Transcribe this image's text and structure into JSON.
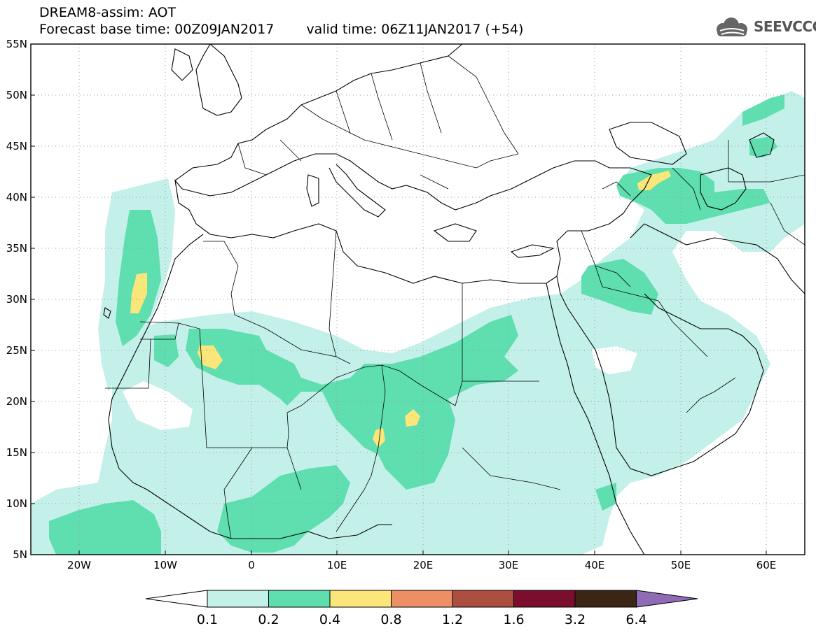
{
  "header": {
    "line1": "DREAM8-assim: AOT",
    "base_label": "Forecast base time: 00Z09JAN2017",
    "valid_label": "valid time: 06Z11JAN2017 (+54)"
  },
  "logo": {
    "text": "SEEVCCC",
    "icon": "cloud-icon"
  },
  "map": {
    "lon_range": [
      -25,
      65
    ],
    "lat_range": [
      5,
      55
    ],
    "lat_labels": [
      "55N",
      "50N",
      "45N",
      "40N",
      "35N",
      "30N",
      "25N",
      "20N",
      "15N",
      "10N",
      "5N"
    ],
    "lon_labels": [
      "20W",
      "10W",
      "0",
      "10E",
      "20E",
      "30E",
      "40E",
      "50E",
      "60E"
    ],
    "grid": "dotted"
  },
  "colorbar": {
    "labels": [
      "0.1",
      "0.2",
      "0.4",
      "0.8",
      "1.2",
      "1.6",
      "3.2",
      "6.4"
    ],
    "colors": [
      "#ffffff",
      "#c4f0ea",
      "#5fdeb0",
      "#fbe679",
      "#ec8f64",
      "#ad4f40",
      "#7b0e2c",
      "#3b2616",
      "#8e6bb4"
    ]
  },
  "colors": {
    "aot_low": "#c4f0ea",
    "aot_mid": "#5fdeb0",
    "aot_high": "#fbe679"
  }
}
